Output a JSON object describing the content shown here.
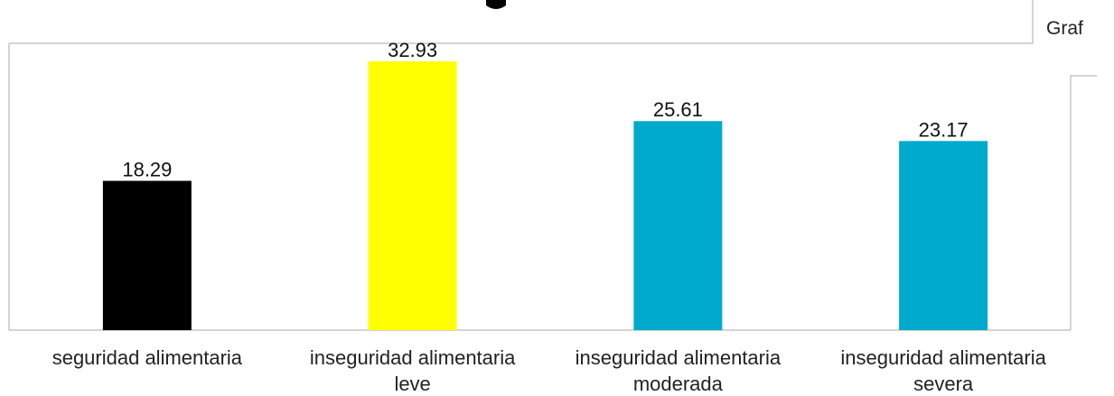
{
  "corner_text": "Graf",
  "chart_data": {
    "type": "bar",
    "categories": [
      [
        "seguridad alimentaria"
      ],
      [
        "inseguridad alimentaria",
        "leve"
      ],
      [
        "inseguridad alimentaria",
        "moderada"
      ],
      [
        "inseguridad alimentaria",
        "severa"
      ]
    ],
    "values": [
      18.29,
      32.93,
      25.61,
      23.17
    ],
    "value_labels": [
      "18.29",
      "32.93",
      "25.61",
      "23.17"
    ],
    "colors": [
      "#000000",
      "#ffff00",
      "#00aacc",
      "#00aacc"
    ],
    "ylim": [
      0,
      33.5
    ],
    "grid": false,
    "legend": "none"
  }
}
